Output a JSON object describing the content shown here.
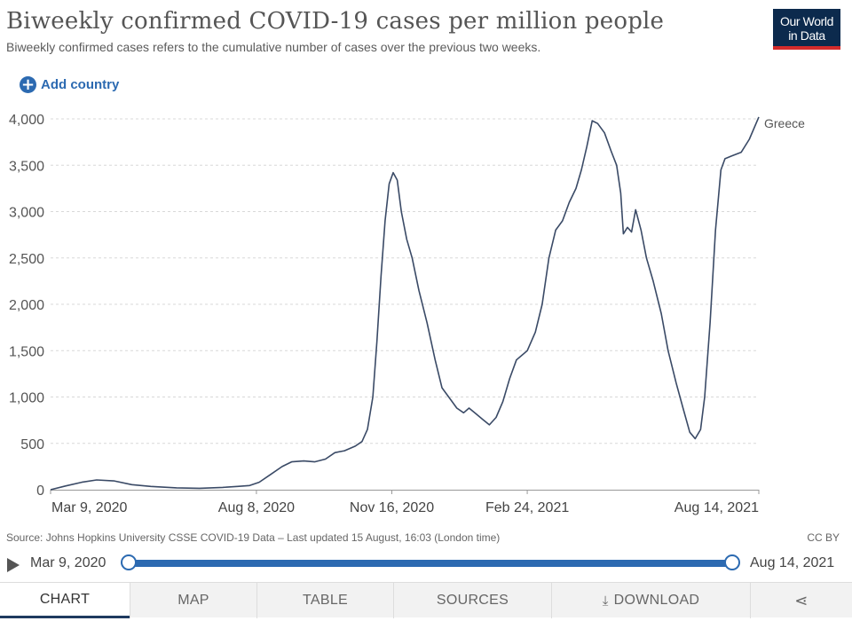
{
  "header": {
    "title": "Biweekly confirmed COVID-19 cases per million people",
    "subtitle": "Biweekly confirmed cases refers to the cumulative number of cases over the previous two weeks.",
    "logo_line1": "Our World",
    "logo_line2": "in Data"
  },
  "controls": {
    "add_country_label": "Add country",
    "add_icon": "plus-circle-icon"
  },
  "chart_data": {
    "type": "line",
    "title": "Biweekly confirmed COVID-19 cases per million people",
    "xlabel": "",
    "ylabel": "",
    "x_ticks": [
      "Mar 9, 2020",
      "Aug 8, 2020",
      "Nov 16, 2020",
      "Feb 24, 2021",
      "Aug 14, 2021"
    ],
    "x_tick_dates": [
      "2020-03-09",
      "2020-08-08",
      "2020-11-16",
      "2021-02-24",
      "2021-08-14"
    ],
    "xlim": [
      "2020-03-09",
      "2021-08-14"
    ],
    "y_ticks": [
      0,
      500,
      1000,
      1500,
      2000,
      2500,
      3000,
      3500,
      4000
    ],
    "y_tick_labels": [
      "0",
      "500",
      "1,000",
      "1,500",
      "2,000",
      "2,500",
      "3,000",
      "3,500",
      "4,000"
    ],
    "ylim": [
      0,
      4000
    ],
    "grid": "horizontal dashed",
    "line_color": "#3a4a66",
    "series": [
      {
        "name": "Greece",
        "points": [
          [
            "2020-03-09",
            0
          ],
          [
            "2020-03-20",
            40
          ],
          [
            "2020-04-01",
            80
          ],
          [
            "2020-04-12",
            105
          ],
          [
            "2020-04-25",
            95
          ],
          [
            "2020-05-08",
            55
          ],
          [
            "2020-05-22",
            35
          ],
          [
            "2020-06-10",
            20
          ],
          [
            "2020-06-27",
            15
          ],
          [
            "2020-07-14",
            25
          ],
          [
            "2020-07-25",
            35
          ],
          [
            "2020-08-03",
            45
          ],
          [
            "2020-08-10",
            80
          ],
          [
            "2020-08-18",
            160
          ],
          [
            "2020-08-27",
            250
          ],
          [
            "2020-09-03",
            300
          ],
          [
            "2020-09-12",
            310
          ],
          [
            "2020-09-20",
            300
          ],
          [
            "2020-09-28",
            330
          ],
          [
            "2020-10-05",
            400
          ],
          [
            "2020-10-12",
            420
          ],
          [
            "2020-10-20",
            470
          ],
          [
            "2020-10-25",
            520
          ],
          [
            "2020-10-29",
            650
          ],
          [
            "2020-11-02",
            1000
          ],
          [
            "2020-11-05",
            1600
          ],
          [
            "2020-11-08",
            2300
          ],
          [
            "2020-11-11",
            2900
          ],
          [
            "2020-11-14",
            3300
          ],
          [
            "2020-11-17",
            3420
          ],
          [
            "2020-11-20",
            3340
          ],
          [
            "2020-11-23",
            3000
          ],
          [
            "2020-11-27",
            2700
          ],
          [
            "2020-12-01",
            2500
          ],
          [
            "2020-12-06",
            2150
          ],
          [
            "2020-12-12",
            1800
          ],
          [
            "2020-12-18",
            1400
          ],
          [
            "2020-12-23",
            1100
          ],
          [
            "2020-12-28",
            1000
          ],
          [
            "2021-01-03",
            880
          ],
          [
            "2021-01-08",
            830
          ],
          [
            "2021-01-12",
            880
          ],
          [
            "2021-01-17",
            820
          ],
          [
            "2021-01-22",
            760
          ],
          [
            "2021-01-27",
            700
          ],
          [
            "2021-02-01",
            780
          ],
          [
            "2021-02-06",
            950
          ],
          [
            "2021-02-11",
            1200
          ],
          [
            "2021-02-16",
            1400
          ],
          [
            "2021-02-20",
            1450
          ],
          [
            "2021-02-24",
            1500
          ],
          [
            "2021-03-02",
            1700
          ],
          [
            "2021-03-07",
            2000
          ],
          [
            "2021-03-12",
            2500
          ],
          [
            "2021-03-17",
            2800
          ],
          [
            "2021-03-22",
            2900
          ],
          [
            "2021-03-27",
            3100
          ],
          [
            "2021-04-01",
            3250
          ],
          [
            "2021-04-05",
            3450
          ],
          [
            "2021-04-09",
            3700
          ],
          [
            "2021-04-13",
            3980
          ],
          [
            "2021-04-17",
            3950
          ],
          [
            "2021-04-22",
            3850
          ],
          [
            "2021-04-27",
            3650
          ],
          [
            "2021-05-01",
            3500
          ],
          [
            "2021-05-04",
            3200
          ],
          [
            "2021-05-06",
            2760
          ],
          [
            "2021-05-09",
            2830
          ],
          [
            "2021-05-12",
            2780
          ],
          [
            "2021-05-15",
            3020
          ],
          [
            "2021-05-19",
            2800
          ],
          [
            "2021-05-23",
            2500
          ],
          [
            "2021-05-28",
            2250
          ],
          [
            "2021-06-03",
            1900
          ],
          [
            "2021-06-08",
            1500
          ],
          [
            "2021-06-14",
            1150
          ],
          [
            "2021-06-19",
            880
          ],
          [
            "2021-06-24",
            620
          ],
          [
            "2021-06-28",
            550
          ],
          [
            "2021-07-02",
            650
          ],
          [
            "2021-07-05",
            1000
          ],
          [
            "2021-07-09",
            1800
          ],
          [
            "2021-07-13",
            2800
          ],
          [
            "2021-07-17",
            3450
          ],
          [
            "2021-07-20",
            3570
          ],
          [
            "2021-07-25",
            3600
          ],
          [
            "2021-08-01",
            3640
          ],
          [
            "2021-08-07",
            3780
          ],
          [
            "2021-08-14",
            4020
          ]
        ]
      }
    ]
  },
  "footer": {
    "source": "Source: Johns Hopkins University CSSE COVID-19 Data – Last updated 15 August, 16:03 (London time)",
    "license": "CC BY"
  },
  "timeline": {
    "start_label": "Mar 9, 2020",
    "end_label": "Aug 14, 2021",
    "play_icon": "play-icon"
  },
  "tabs": [
    {
      "label": "CHART",
      "active": true
    },
    {
      "label": "MAP"
    },
    {
      "label": "TABLE"
    },
    {
      "label": "SOURCES"
    },
    {
      "label": "DOWNLOAD",
      "icon": "download-icon"
    },
    {
      "label": "",
      "icon": "share-icon"
    }
  ]
}
